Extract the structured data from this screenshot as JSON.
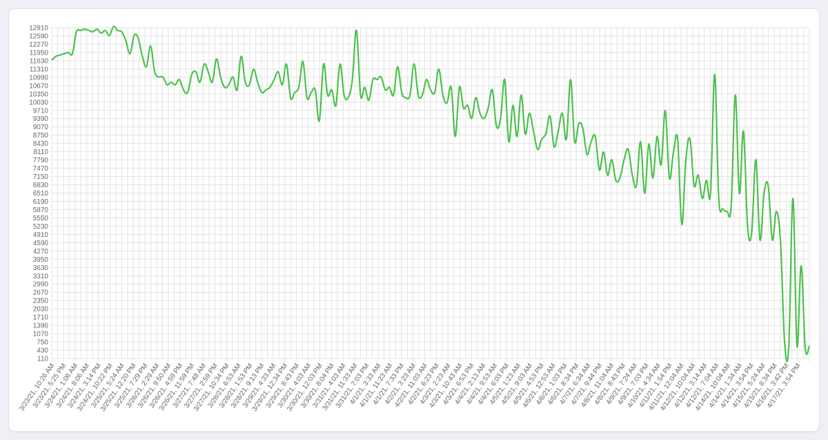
{
  "chart_data": {
    "type": "line",
    "title": "",
    "xlabel": "",
    "ylabel": "",
    "line_color": "#4cc14d",
    "grid": true,
    "ylim": [
      110,
      12910
    ],
    "y_ticks": [
      110,
      430,
      750,
      1070,
      1390,
      1710,
      2030,
      2350,
      2670,
      2990,
      3310,
      3630,
      3950,
      4270,
      4590,
      4910,
      5230,
      5550,
      5870,
      6190,
      6510,
      6830,
      7150,
      7470,
      7790,
      8110,
      8430,
      8750,
      9070,
      9390,
      9710,
      10030,
      10350,
      10670,
      10990,
      11310,
      11630,
      11950,
      12270,
      12590,
      12910
    ],
    "x_tick_labels": [
      "3/23/21, 10:26 AM",
      "3/23/21, 5:25 PM",
      "3/24/21, 1:06 AM",
      "3/24/21, 8:06 AM",
      "3/24/21, 3:14 PM",
      "3/24/21, 10:22 PM",
      "3/25/21, 5:24 AM",
      "3/25/21, 12:20 PM",
      "3/25/21, 7:29 PM",
      "3/26/21, 2:29 AM",
      "3/26/21, 9:50 AM",
      "3/26/21, 4:59 PM",
      "3/26/21, 11:59 PM",
      "3/27/21, 7:48 AM",
      "3/27/21, 2:59 PM",
      "3/27/21, 10:34 PM",
      "3/28/21, 6:53 AM",
      "3/28/21, 1:53 PM",
      "3/28/21, 9:13 PM",
      "3/29/21, 4:33 AM",
      "3/29/21, 12:34 PM",
      "3/29/21, 8:43 PM",
      "3/30/21, 4:03 AM",
      "3/30/21, 12:03 PM",
      "3/30/21, 8:04 PM",
      "3/31/21, 4:03 AM",
      "3/31/21, 11:33 AM",
      "3/31/21, 7:03 PM",
      "4/1/21, 3:33 AM",
      "4/1/21, 11:23 AM",
      "4/1/21, 7:33 PM",
      "4/2/21, 3:23 AM",
      "4/2/21, 11:03 AM",
      "4/2/21, 6:23 PM",
      "4/3/21, 2:23 AM",
      "4/3/21, 10:43 AM",
      "4/3/21, 6:53 PM",
      "4/4/21, 2:13 AM",
      "4/4/21, 9:53 AM",
      "4/4/21, 6:03 PM",
      "4/5/21, 1:23 AM",
      "4/5/21, 9:03 AM",
      "4/5/21, 4:53 PM",
      "4/6/21, 12:53 AM",
      "4/6/21, 1:03 PM",
      "4/6/21, 8:34 PM",
      "4/7/21, 6:34 AM",
      "4/7/21, 9:44 PM",
      "4/8/21, 11:04 AM",
      "4/8/21, 8:43 PM",
      "4/9/21, 7:24 AM",
      "4/9/21, 7:03 PM",
      "4/10/21, 4:34 AM",
      "4/11/21, 1:54 PM",
      "4/11/21, 12:04 AM",
      "4/12/21, 10:04 AM",
      "4/12/21, 3:14 AM",
      "4/12/21, 7:04 AM",
      "4/14/21, 10:04 AM",
      "4/14/21, 1:34 AM",
      "4/14/21, 3:54 PM",
      "4/15/21, 5:24 AM",
      "4/15/21, 8:34 PM",
      "4/16/21, 3:42 PM",
      "4/17/21, 3:54 PM"
    ],
    "values": [
      11650,
      11800,
      11850,
      11900,
      11950,
      11900,
      12750,
      12800,
      12850,
      12800,
      12750,
      12850,
      12700,
      12800,
      12600,
      12950,
      12800,
      12750,
      12400,
      11900,
      12600,
      12500,
      11800,
      11400,
      12200,
      11200,
      11000,
      11000,
      10700,
      10800,
      10700,
      10900,
      10500,
      10400,
      11100,
      11200,
      10800,
      11500,
      11200,
      10800,
      11700,
      11000,
      10600,
      10700,
      11000,
      10500,
      11800,
      10800,
      10700,
      11300,
      10800,
      10400,
      10500,
      10600,
      10900,
      11200,
      10700,
      11500,
      10200,
      10400,
      10600,
      11600,
      10200,
      10400,
      10500,
      9300,
      11500,
      10300,
      10500,
      9900,
      11500,
      10300,
      10200,
      10900,
      12800,
      10300,
      10600,
      10100,
      10900,
      10900,
      11000,
      10500,
      10600,
      10300,
      11400,
      10400,
      10200,
      10300,
      11500,
      10300,
      10300,
      10900,
      10500,
      10400,
      11300,
      10300,
      10000,
      10600,
      8700,
      10600,
      9800,
      9900,
      9400,
      10200,
      9600,
      9400,
      9800,
      10500,
      9100,
      9400,
      10900,
      8500,
      9900,
      8700,
      10300,
      8800,
      9600,
      8900,
      8200,
      8600,
      8800,
      9500,
      8300,
      8900,
      9600,
      8600,
      10900,
      8500,
      9200,
      9000,
      8000,
      8500,
      8700,
      7400,
      8100,
      7200,
      7800,
      7000,
      7100,
      7800,
      8200,
      7200,
      6800,
      8500,
      6500,
      8400,
      7100,
      8700,
      7600,
      9700,
      7100,
      8100,
      8600,
      5300,
      7800,
      8600,
      6800,
      7200,
      6300,
      7000,
      6500,
      11100,
      6300,
      5900,
      5800,
      6000,
      10300,
      6500,
      8900,
      5200,
      5000,
      7800,
      4700,
      6500,
      6800,
      4700,
      5800,
      4600,
      700,
      600,
      6300,
      600,
      3700,
      500,
      600
    ],
    "points_per_tick": 3.0
  }
}
